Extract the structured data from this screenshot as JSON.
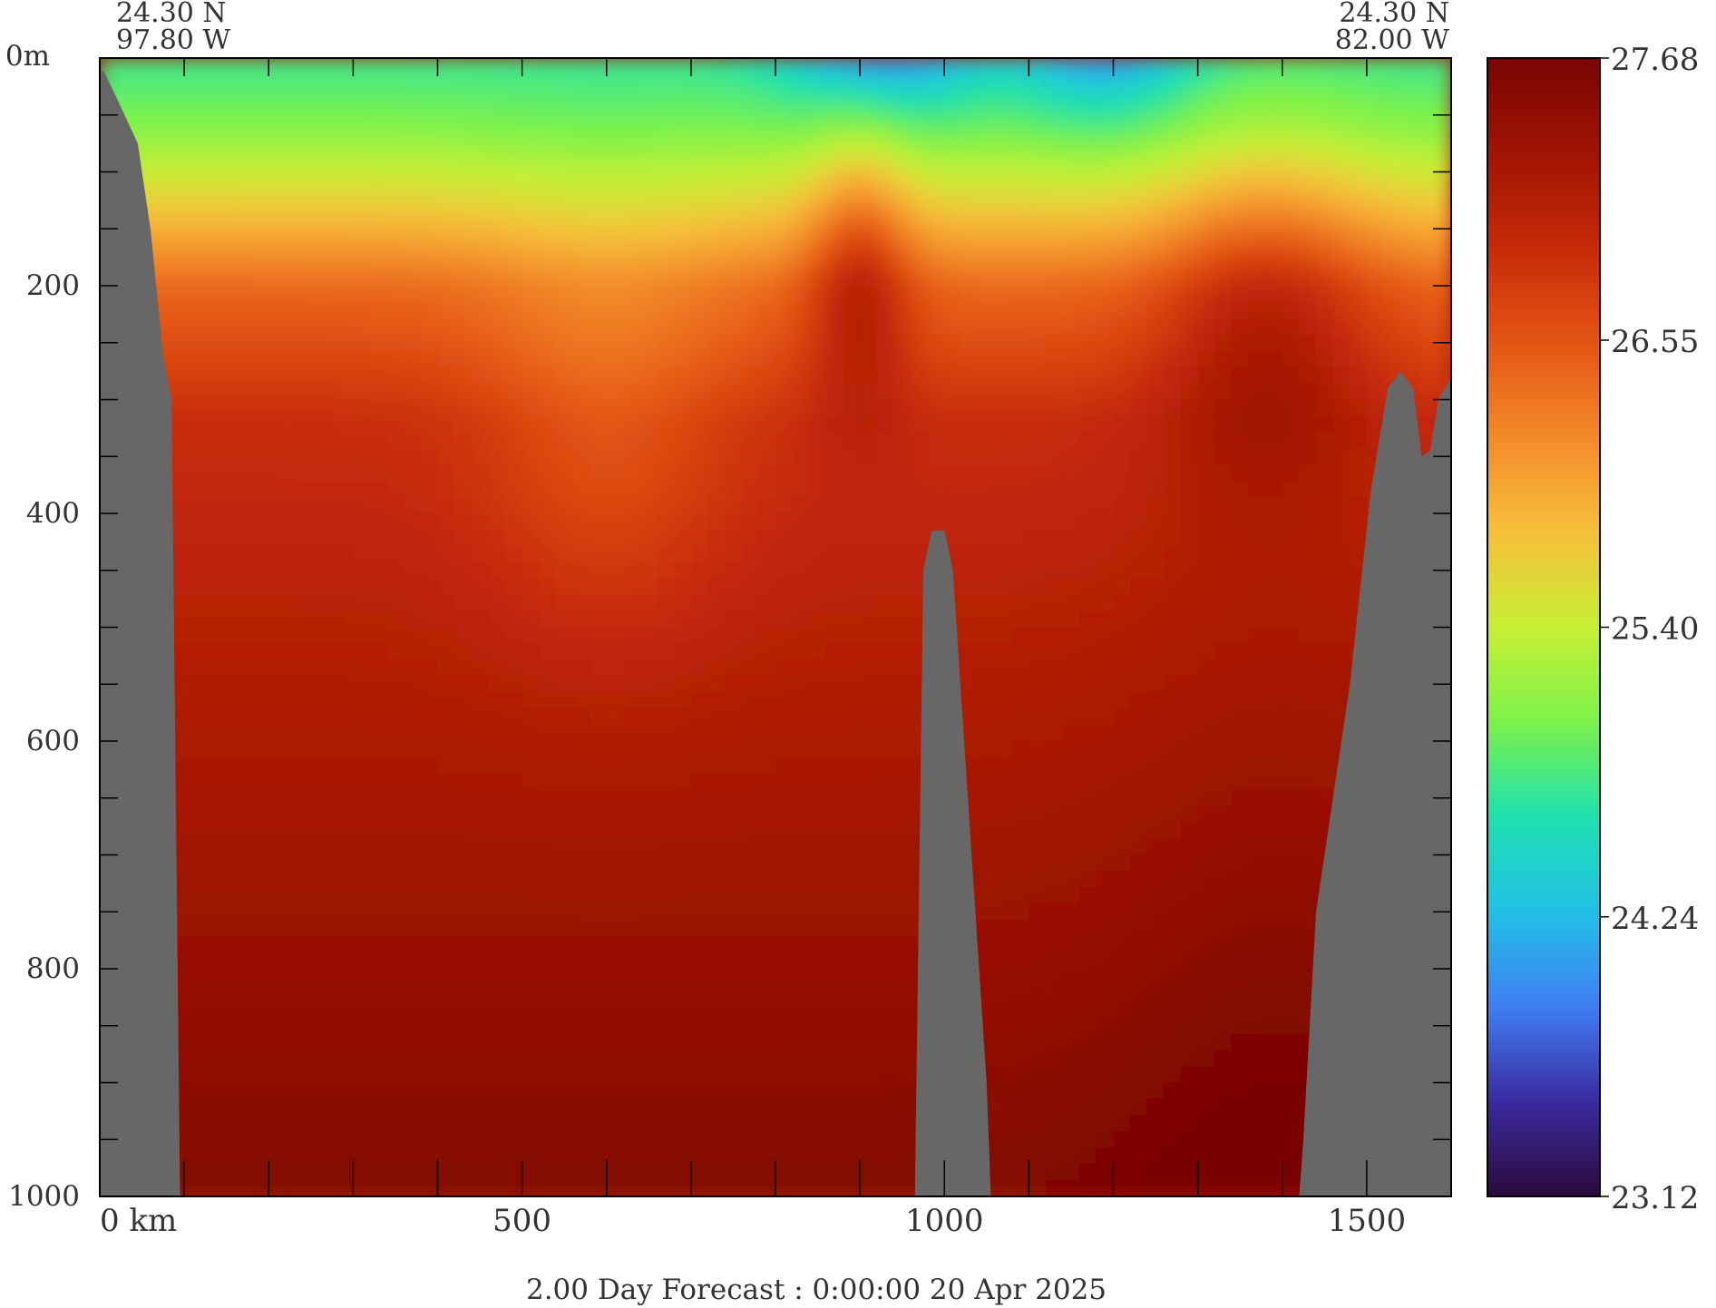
{
  "chart_data": {
    "type": "heatmap",
    "title": "2.00 Day Forecast :  0:00:00  20 Apr 2025",
    "section": {
      "left_lat": "24.30 N",
      "left_lon": "97.80 W",
      "right_lat": "24.30 N",
      "right_lon": "82.00 W"
    },
    "xlabel": "",
    "ylabel": "",
    "x_range_km": [
      0,
      1600
    ],
    "y_range_m": [
      0,
      1000
    ],
    "x_ticks": [
      {
        "value": 0,
        "label": "0 km"
      },
      {
        "value": 500,
        "label": "500"
      },
      {
        "value": 1000,
        "label": "1000"
      },
      {
        "value": 1500,
        "label": "1500"
      }
    ],
    "y_ticks": [
      {
        "value": 0,
        "label": "0m"
      },
      {
        "value": 200,
        "label": "200"
      },
      {
        "value": 400,
        "label": "400"
      },
      {
        "value": 600,
        "label": "600"
      },
      {
        "value": 800,
        "label": "800"
      },
      {
        "value": 1000,
        "label": "1000"
      }
    ],
    "colorbar": {
      "min": 23.12,
      "max": 27.68,
      "tick_labels": [
        "27.68",
        "26.55",
        "25.40",
        "24.24",
        "23.12"
      ],
      "tick_values": [
        27.68,
        26.55,
        25.4,
        24.24,
        23.12
      ],
      "colors": [
        "#2a0a3c",
        "#3b2aa0",
        "#3f7ef2",
        "#22c0e6",
        "#1ee0b0",
        "#7cf24a",
        "#c8ef34",
        "#f6c03a",
        "#f38a2a",
        "#e45514",
        "#c62a08",
        "#a01404",
        "#7a0402"
      ]
    },
    "land_color": "#676767",
    "approx_field": {
      "note_depths_m": [
        0,
        60,
        120,
        180,
        260,
        400,
        600,
        800,
        1000
      ],
      "typical_values": [
        24.9,
        25.2,
        25.6,
        26.2,
        26.8,
        27.0,
        27.2,
        27.4,
        27.6
      ]
    }
  }
}
